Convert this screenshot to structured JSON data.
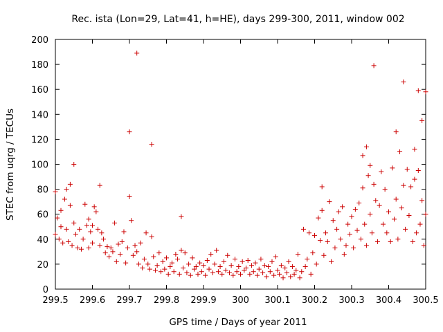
{
  "chart_data": {
    "type": "scatter",
    "title": "Rec. ista (Lon=29, Lat=41, h=HE), days 299-300, 2011, window 002",
    "xlabel": "GPS time / Days of year 2011",
    "ylabel": "STEC from uqrg / TECUs",
    "xlim": [
      299.5,
      300.5
    ],
    "ylim": [
      0,
      200
    ],
    "x_ticks": [
      299.5,
      299.6,
      299.7,
      299.8,
      299.9,
      300.0,
      300.1,
      300.2,
      300.3,
      300.4,
      300.5
    ],
    "x_tick_labels": [
      "299.5",
      "299.6",
      "299.7",
      "299.8",
      "299.9",
      "300",
      "300.1",
      "300.2",
      "300.3",
      "300.4",
      "300.5"
    ],
    "y_ticks": [
      0,
      20,
      40,
      60,
      80,
      100,
      120,
      140,
      160,
      180,
      200
    ],
    "y_tick_labels": [
      "0",
      "20",
      "40",
      "60",
      "80",
      "100",
      "120",
      "140",
      "160",
      "180",
      "200"
    ],
    "grid": false,
    "marker": "+",
    "marker_color": "#cc0000",
    "series": [
      {
        "points": [
          [
            299.5,
            44
          ],
          [
            299.5,
            78
          ],
          [
            299.505,
            57
          ],
          [
            299.51,
            40
          ],
          [
            299.515,
            63
          ],
          [
            299.515,
            50
          ],
          [
            299.52,
            37
          ],
          [
            299.525,
            72
          ],
          [
            299.53,
            80
          ],
          [
            299.53,
            48
          ],
          [
            299.535,
            38
          ],
          [
            299.54,
            84
          ],
          [
            299.54,
            67
          ],
          [
            299.545,
            35
          ],
          [
            299.55,
            100
          ],
          [
            299.55,
            53
          ],
          [
            299.555,
            44
          ],
          [
            299.56,
            33
          ],
          [
            299.565,
            48
          ],
          [
            299.57,
            32
          ],
          [
            299.575,
            40
          ],
          [
            299.58,
            68
          ],
          [
            299.585,
            51
          ],
          [
            299.59,
            33
          ],
          [
            299.59,
            56
          ],
          [
            299.595,
            46
          ],
          [
            299.6,
            51
          ],
          [
            299.6,
            37
          ],
          [
            299.605,
            66
          ],
          [
            299.61,
            62
          ],
          [
            299.615,
            48
          ],
          [
            299.62,
            83
          ],
          [
            299.62,
            35
          ],
          [
            299.625,
            45
          ],
          [
            299.63,
            40
          ],
          [
            299.635,
            29
          ],
          [
            299.64,
            34
          ],
          [
            299.645,
            26
          ],
          [
            299.65,
            33
          ],
          [
            299.655,
            30
          ],
          [
            299.66,
            53
          ],
          [
            299.665,
            22
          ],
          [
            299.67,
            36
          ],
          [
            299.675,
            28
          ],
          [
            299.68,
            38
          ],
          [
            299.685,
            46
          ],
          [
            299.69,
            21
          ],
          [
            299.695,
            33
          ],
          [
            299.7,
            126
          ],
          [
            299.7,
            74
          ],
          [
            299.705,
            55
          ],
          [
            299.71,
            27
          ],
          [
            299.715,
            35
          ],
          [
            299.72,
            189
          ],
          [
            299.72,
            30
          ],
          [
            299.725,
            20
          ],
          [
            299.73,
            37
          ],
          [
            299.735,
            17
          ],
          [
            299.74,
            24
          ],
          [
            299.745,
            45
          ],
          [
            299.75,
            20
          ],
          [
            299.755,
            16
          ],
          [
            299.76,
            116
          ],
          [
            299.76,
            42
          ],
          [
            299.765,
            26
          ],
          [
            299.77,
            15
          ],
          [
            299.775,
            19
          ],
          [
            299.78,
            29
          ],
          [
            299.785,
            14
          ],
          [
            299.79,
            22
          ],
          [
            299.795,
            16
          ],
          [
            299.8,
            25
          ],
          [
            299.805,
            12
          ],
          [
            299.81,
            18
          ],
          [
            299.815,
            21
          ],
          [
            299.82,
            14
          ],
          [
            299.825,
            28
          ],
          [
            299.83,
            24
          ],
          [
            299.835,
            12
          ],
          [
            299.84,
            58
          ],
          [
            299.84,
            31
          ],
          [
            299.845,
            17
          ],
          [
            299.85,
            29
          ],
          [
            299.855,
            13
          ],
          [
            299.86,
            20
          ],
          [
            299.865,
            11
          ],
          [
            299.87,
            25
          ],
          [
            299.875,
            16
          ],
          [
            299.88,
            18
          ],
          [
            299.885,
            12
          ],
          [
            299.89,
            21
          ],
          [
            299.895,
            14
          ],
          [
            299.9,
            19
          ],
          [
            299.905,
            11
          ],
          [
            299.91,
            23
          ],
          [
            299.915,
            16
          ],
          [
            299.92,
            28
          ],
          [
            299.925,
            13
          ],
          [
            299.93,
            20
          ],
          [
            299.935,
            31
          ],
          [
            299.94,
            14
          ],
          [
            299.945,
            18
          ],
          [
            299.95,
            12
          ],
          [
            299.955,
            22
          ],
          [
            299.96,
            15
          ],
          [
            299.965,
            27
          ],
          [
            299.97,
            13
          ],
          [
            299.975,
            19
          ],
          [
            299.98,
            11
          ],
          [
            299.985,
            24
          ],
          [
            299.99,
            14
          ],
          [
            299.995,
            18
          ],
          [
            300.0,
            12
          ],
          [
            300.005,
            22
          ],
          [
            300.01,
            15
          ],
          [
            300.015,
            17
          ],
          [
            300.02,
            23
          ],
          [
            300.025,
            12
          ],
          [
            300.03,
            19
          ],
          [
            300.035,
            14
          ],
          [
            300.04,
            21
          ],
          [
            300.045,
            11
          ],
          [
            300.05,
            16
          ],
          [
            300.055,
            24
          ],
          [
            300.06,
            13
          ],
          [
            300.065,
            19
          ],
          [
            300.07,
            10
          ],
          [
            300.075,
            18
          ],
          [
            300.08,
            14
          ],
          [
            300.085,
            22
          ],
          [
            300.09,
            11
          ],
          [
            300.095,
            26
          ],
          [
            300.1,
            15
          ],
          [
            300.105,
            12
          ],
          [
            300.11,
            19
          ],
          [
            300.115,
            9
          ],
          [
            300.12,
            17
          ],
          [
            300.125,
            13
          ],
          [
            300.13,
            22
          ],
          [
            300.135,
            10
          ],
          [
            300.14,
            18
          ],
          [
            300.145,
            12
          ],
          [
            300.15,
            15
          ],
          [
            300.155,
            28
          ],
          [
            300.16,
            9
          ],
          [
            300.165,
            14
          ],
          [
            300.17,
            48
          ],
          [
            300.175,
            18
          ],
          [
            300.18,
            24
          ],
          [
            300.185,
            45
          ],
          [
            300.19,
            12
          ],
          [
            300.195,
            29
          ],
          [
            300.2,
            43
          ],
          [
            300.205,
            20
          ],
          [
            300.21,
            57
          ],
          [
            300.215,
            39
          ],
          [
            300.22,
            63
          ],
          [
            300.22,
            82
          ],
          [
            300.225,
            27
          ],
          [
            300.23,
            45
          ],
          [
            300.235,
            38
          ],
          [
            300.24,
            70
          ],
          [
            300.245,
            22
          ],
          [
            300.25,
            55
          ],
          [
            300.255,
            33
          ],
          [
            300.26,
            48
          ],
          [
            300.265,
            62
          ],
          [
            300.27,
            40
          ],
          [
            300.275,
            66
          ],
          [
            300.28,
            28
          ],
          [
            300.285,
            35
          ],
          [
            300.29,
            52
          ],
          [
            300.295,
            44
          ],
          [
            300.3,
            58
          ],
          [
            300.305,
            33
          ],
          [
            300.31,
            64
          ],
          [
            300.315,
            47
          ],
          [
            300.32,
            69
          ],
          [
            300.325,
            40
          ],
          [
            300.33,
            107
          ],
          [
            300.33,
            81
          ],
          [
            300.335,
            52
          ],
          [
            300.34,
            114
          ],
          [
            300.34,
            35
          ],
          [
            300.345,
            91
          ],
          [
            300.35,
            99
          ],
          [
            300.35,
            60
          ],
          [
            300.355,
            45
          ],
          [
            300.36,
            179
          ],
          [
            300.36,
            84
          ],
          [
            300.365,
            71
          ],
          [
            300.37,
            38
          ],
          [
            300.375,
            67
          ],
          [
            300.38,
            94
          ],
          [
            300.385,
            52
          ],
          [
            300.39,
            80
          ],
          [
            300.395,
            45
          ],
          [
            300.4,
            62
          ],
          [
            300.405,
            38
          ],
          [
            300.41,
            97
          ],
          [
            300.415,
            56
          ],
          [
            300.42,
            126
          ],
          [
            300.42,
            72
          ],
          [
            300.425,
            40
          ],
          [
            300.43,
            110
          ],
          [
            300.435,
            65
          ],
          [
            300.44,
            166
          ],
          [
            300.44,
            83
          ],
          [
            300.445,
            48
          ],
          [
            300.45,
            96
          ],
          [
            300.455,
            59
          ],
          [
            300.46,
            82
          ],
          [
            300.465,
            38
          ],
          [
            300.47,
            112
          ],
          [
            300.47,
            88
          ],
          [
            300.475,
            45
          ],
          [
            300.48,
            159
          ],
          [
            300.48,
            95
          ],
          [
            300.485,
            52
          ],
          [
            300.49,
            135
          ],
          [
            300.49,
            71
          ],
          [
            300.495,
            35
          ],
          [
            300.5,
            60
          ],
          [
            300.5,
            158
          ]
        ]
      }
    ]
  }
}
